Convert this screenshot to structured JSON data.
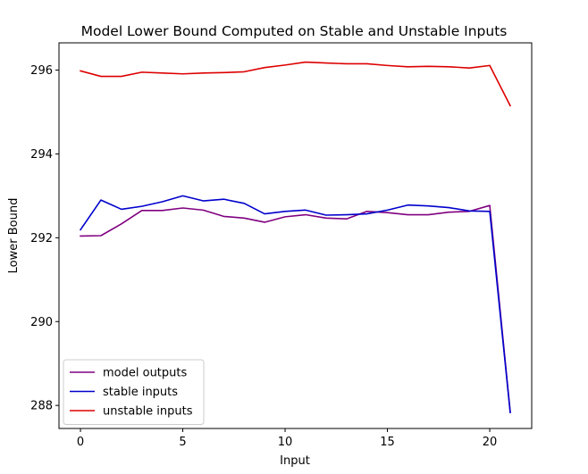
{
  "chart_data": {
    "type": "line",
    "title": "Model Lower Bound Computed on Stable and Unstable Inputs",
    "xlabel": "Input",
    "ylabel": "Lower Bound",
    "xlim": [
      -1.05,
      22.05
    ],
    "ylim": [
      287.45,
      296.65
    ],
    "xticks": [
      0,
      5,
      10,
      15,
      20
    ],
    "yticks": [
      288,
      290,
      292,
      294,
      296
    ],
    "grid": false,
    "legend_position": "lower-left",
    "x": [
      0,
      1,
      2,
      3,
      4,
      5,
      6,
      7,
      8,
      9,
      10,
      11,
      12,
      13,
      14,
      15,
      16,
      17,
      18,
      19,
      20,
      21
    ],
    "series": [
      {
        "name": "model outputs",
        "color": "#800080",
        "values": [
          292.04,
          292.05,
          292.33,
          292.65,
          292.65,
          292.71,
          292.66,
          292.51,
          292.47,
          292.37,
          292.5,
          292.55,
          292.47,
          292.45,
          292.63,
          292.6,
          292.55,
          292.55,
          292.61,
          292.63,
          292.77,
          287.85
        ]
      },
      {
        "name": "stable inputs",
        "color": "#0000cc",
        "values": [
          292.19,
          292.9,
          292.68,
          292.75,
          292.86,
          293.0,
          292.88,
          292.92,
          292.82,
          292.57,
          292.63,
          292.66,
          292.54,
          292.55,
          292.57,
          292.66,
          292.78,
          292.76,
          292.72,
          292.64,
          292.63,
          287.83
        ]
      },
      {
        "name": "unstable inputs",
        "color": "#dd0000",
        "values": [
          295.98,
          295.85,
          295.85,
          295.95,
          295.93,
          295.91,
          295.93,
          295.94,
          295.96,
          296.06,
          296.12,
          296.19,
          296.17,
          296.15,
          296.15,
          296.11,
          296.08,
          296.09,
          296.08,
          296.05,
          296.11,
          295.15
        ]
      }
    ]
  }
}
